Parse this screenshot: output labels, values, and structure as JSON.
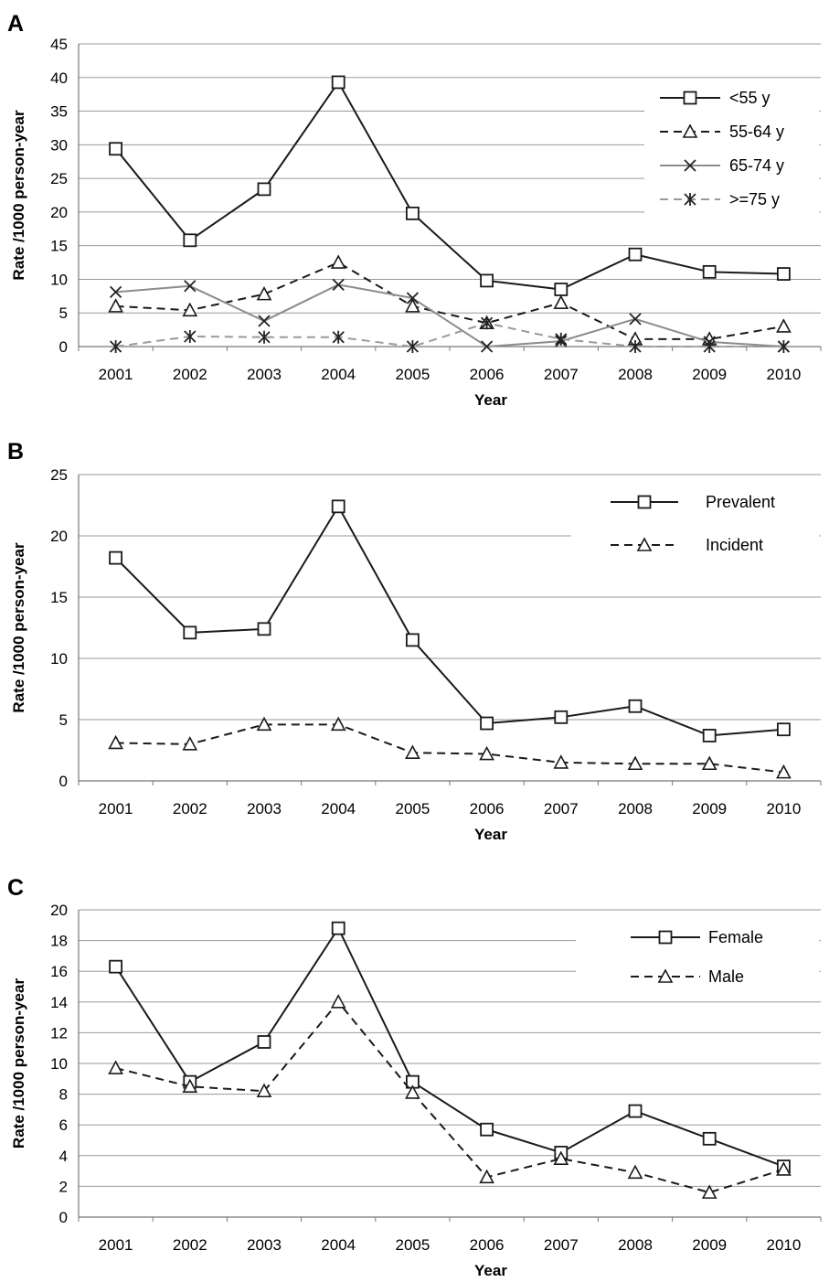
{
  "chart_data": [
    {
      "type": "line",
      "panel_label": "A",
      "title": "",
      "xlabel": "Year",
      "ylabel": "Rate /1000 person-year",
      "categories": [
        "2001",
        "2002",
        "2003",
        "2004",
        "2005",
        "2006",
        "2007",
        "2008",
        "2009",
        "2010"
      ],
      "ylim": [
        0,
        45
      ],
      "yticks": [
        0,
        5,
        10,
        15,
        20,
        25,
        30,
        35,
        40,
        45
      ],
      "grid": true,
      "legend_position": "top-right",
      "series": [
        {
          "name": "<55 y",
          "values": [
            29.4,
            15.8,
            23.4,
            39.3,
            19.8,
            9.8,
            8.5,
            13.7,
            11.1,
            10.8
          ],
          "color": "#1a1a1a",
          "dash": "solid",
          "marker": "square"
        },
        {
          "name": "55-64 y",
          "values": [
            6.0,
            5.4,
            7.8,
            12.5,
            6.0,
            3.5,
            6.5,
            1.1,
            1.1,
            3.0
          ],
          "color": "#1a1a1a",
          "dash": "dashed",
          "marker": "triangle"
        },
        {
          "name": "65-74 y",
          "values": [
            8.1,
            9.0,
            3.8,
            9.2,
            7.2,
            0,
            0.8,
            4.1,
            0.7,
            0
          ],
          "color": "#8c8c8c",
          "dash": "solid",
          "marker": "x"
        },
        {
          "name": ">=75 y",
          "values": [
            0,
            1.5,
            1.4,
            1.4,
            0,
            3.5,
            1.1,
            0,
            0,
            0
          ],
          "color": "#9a9a9a",
          "dash": "dashed",
          "marker": "star"
        }
      ]
    },
    {
      "type": "line",
      "panel_label": "B",
      "title": "",
      "xlabel": "Year",
      "ylabel": "Rate /1000 person-year",
      "categories": [
        "2001",
        "2002",
        "2003",
        "2004",
        "2005",
        "2006",
        "2007",
        "2008",
        "2009",
        "2010"
      ],
      "ylim": [
        0,
        25
      ],
      "yticks": [
        0,
        5,
        10,
        15,
        20,
        25
      ],
      "grid": true,
      "legend_position": "top-right",
      "series": [
        {
          "name": "Prevalent",
          "values": [
            18.2,
            12.1,
            12.4,
            22.4,
            11.5,
            4.7,
            5.2,
            6.1,
            3.7,
            4.2
          ],
          "color": "#1a1a1a",
          "dash": "solid",
          "marker": "square"
        },
        {
          "name": "Incident",
          "values": [
            3.1,
            3.0,
            4.6,
            4.6,
            2.3,
            2.2,
            1.5,
            1.4,
            1.4,
            0.7
          ],
          "color": "#1a1a1a",
          "dash": "dashed",
          "marker": "triangle"
        }
      ]
    },
    {
      "type": "line",
      "panel_label": "C",
      "title": "",
      "xlabel": "Year",
      "ylabel": "Rate /1000 person-year",
      "categories": [
        "2001",
        "2002",
        "2003",
        "2004",
        "2005",
        "2006",
        "2007",
        "2008",
        "2009",
        "2010"
      ],
      "ylim": [
        0,
        20
      ],
      "yticks": [
        0,
        2,
        4,
        6,
        8,
        10,
        12,
        14,
        16,
        18,
        20
      ],
      "grid": true,
      "legend_position": "top-right",
      "series": [
        {
          "name": "Female",
          "values": [
            16.3,
            8.8,
            11.4,
            18.8,
            8.8,
            5.7,
            4.2,
            6.9,
            5.1,
            3.3
          ],
          "color": "#1a1a1a",
          "dash": "solid",
          "marker": "square"
        },
        {
          "name": "Male",
          "values": [
            9.7,
            8.5,
            8.2,
            14.0,
            8.1,
            2.6,
            3.8,
            2.9,
            1.6,
            3.1
          ],
          "color": "#1a1a1a",
          "dash": "dashed",
          "marker": "triangle"
        }
      ]
    }
  ]
}
